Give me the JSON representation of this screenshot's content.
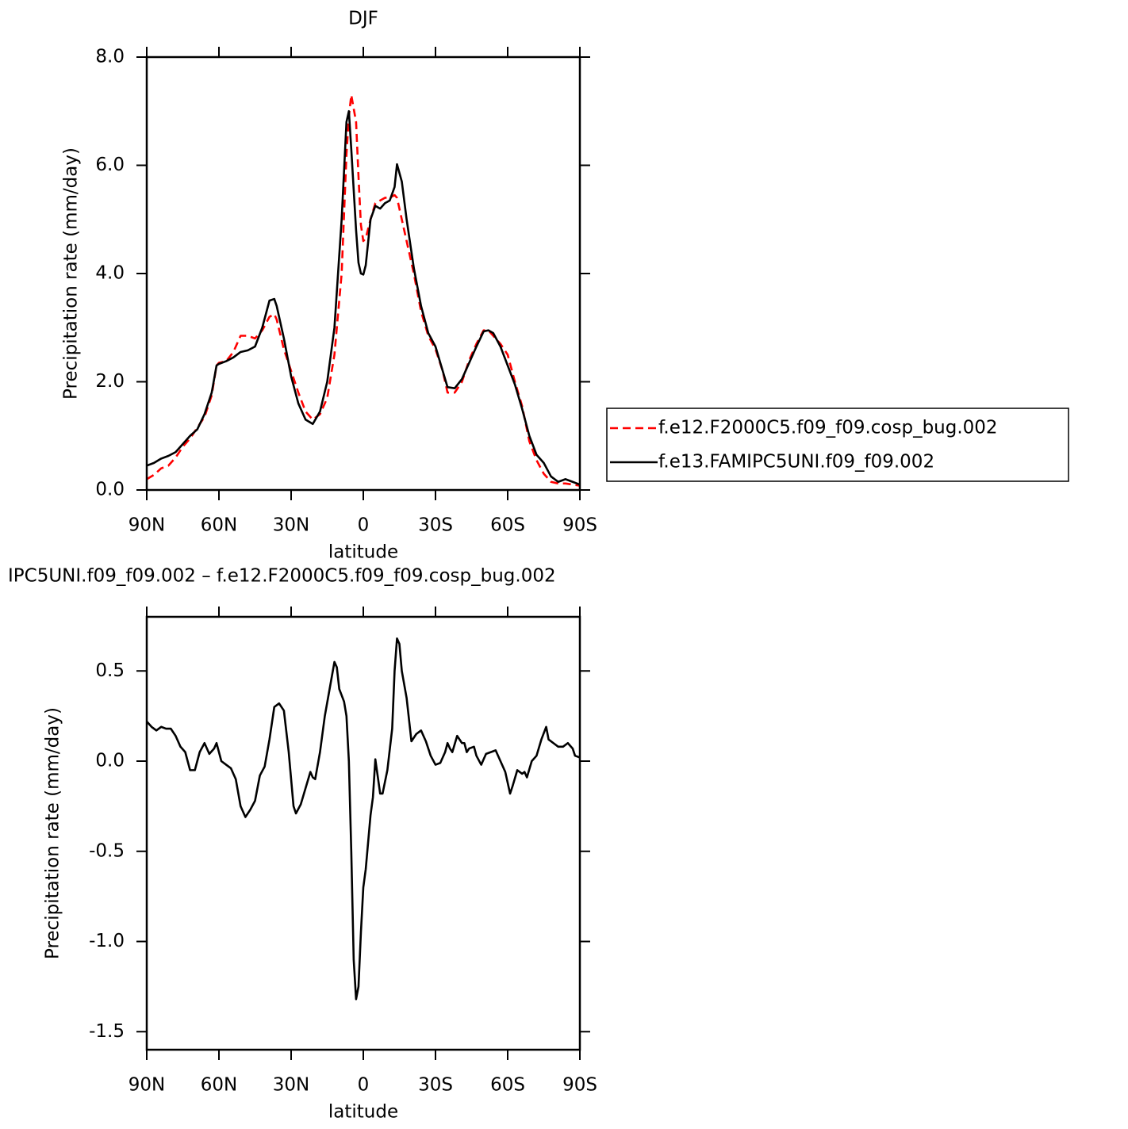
{
  "chart_data": [
    {
      "type": "line",
      "title": "DJF",
      "xlabel": "latitude",
      "ylabel": "Precipitation rate (mm/day)",
      "xlim": [
        90,
        -90
      ],
      "xticks": [
        {
          "value": 90,
          "label": "90N"
        },
        {
          "value": 60,
          "label": "60N"
        },
        {
          "value": 30,
          "label": "30N"
        },
        0,
        {
          "value": -30,
          "label": "30S"
        },
        {
          "value": -60,
          "label": "60S"
        },
        {
          "value": -90,
          "label": "90S"
        }
      ],
      "ylim": [
        0,
        8
      ],
      "yticks": [
        {
          "value": 0,
          "label": "0.0"
        },
        {
          "value": 2,
          "label": "2.0"
        },
        {
          "value": 4,
          "label": "4.0"
        },
        {
          "value": 6,
          "label": "6.0"
        },
        {
          "value": 8,
          "label": "8.0"
        }
      ],
      "legend": "right",
      "x": [
        90,
        87,
        84,
        81,
        78,
        75,
        72,
        69,
        66,
        63,
        61,
        60,
        57,
        54,
        51,
        48,
        45,
        42,
        39,
        37,
        36,
        33,
        30,
        27,
        24,
        21,
        18,
        15,
        12,
        9,
        7,
        6,
        5,
        3,
        2,
        1,
        0,
        -1,
        -3,
        -5,
        -7,
        -9,
        -11,
        -13,
        -14,
        -16,
        -18,
        -21,
        -24,
        -27,
        -30,
        -33,
        -35,
        -38,
        -41,
        -44,
        -47,
        -50,
        -52,
        -54,
        -57,
        -60,
        -63,
        -66,
        -69,
        -72,
        -75,
        -78,
        -81,
        -84,
        -87,
        -90
      ],
      "series": [
        {
          "name": "f.e12.F2000C5.f09_f09.cosp_bug.002",
          "color": "#ff0000",
          "dashed": true,
          "values": [
            0.2,
            0.28,
            0.4,
            0.45,
            0.6,
            0.8,
            0.95,
            1.15,
            1.35,
            1.75,
            2.3,
            2.35,
            2.38,
            2.55,
            2.85,
            2.85,
            2.8,
            2.95,
            3.2,
            3.25,
            3.15,
            2.6,
            2.2,
            1.8,
            1.45,
            1.3,
            1.4,
            1.7,
            2.5,
            4.0,
            6.2,
            6.9,
            7.3,
            6.8,
            5.8,
            4.9,
            4.6,
            4.65,
            5.0,
            5.3,
            5.35,
            5.4,
            5.4,
            5.45,
            5.4,
            5.0,
            4.6,
            4.0,
            3.3,
            2.85,
            2.6,
            2.2,
            1.8,
            1.8,
            2.0,
            2.4,
            2.7,
            2.95,
            2.95,
            2.85,
            2.7,
            2.5,
            2.0,
            1.55,
            0.9,
            0.55,
            0.3,
            0.15,
            0.12,
            0.12,
            0.1,
            0.08
          ]
        },
        {
          "name": "f.e13.FAMIPC5UNI.f09_f09.002",
          "color": "#000000",
          "dashed": false,
          "values": [
            0.45,
            0.5,
            0.58,
            0.63,
            0.7,
            0.85,
            1.0,
            1.12,
            1.4,
            1.8,
            2.3,
            2.33,
            2.38,
            2.45,
            2.55,
            2.58,
            2.65,
            3.0,
            3.5,
            3.53,
            3.4,
            2.8,
            2.1,
            1.6,
            1.3,
            1.22,
            1.45,
            2.0,
            3.0,
            5.0,
            6.8,
            7.0,
            6.3,
            4.8,
            4.2,
            4.0,
            3.98,
            4.15,
            5.0,
            5.25,
            5.2,
            5.3,
            5.35,
            5.6,
            6.02,
            5.7,
            5.0,
            4.1,
            3.4,
            2.9,
            2.65,
            2.2,
            1.9,
            1.88,
            2.05,
            2.35,
            2.65,
            2.93,
            2.95,
            2.9,
            2.65,
            2.3,
            1.95,
            1.5,
            1.0,
            0.65,
            0.5,
            0.25,
            0.15,
            0.2,
            0.15,
            0.1
          ]
        }
      ]
    },
    {
      "type": "line",
      "title": "IPC5UNI.f09_f09.002 – f.e12.F2000C5.f09_f09.cosp_bug.002",
      "xlabel": "latitude",
      "ylabel": "Precipitation rate (mm/day)",
      "xlim": [
        90,
        -90
      ],
      "xticks": [
        {
          "value": 90,
          "label": "90N"
        },
        {
          "value": 60,
          "label": "60N"
        },
        {
          "value": 30,
          "label": "30N"
        },
        0,
        {
          "value": -30,
          "label": "30S"
        },
        {
          "value": -60,
          "label": "60S"
        },
        {
          "value": -90,
          "label": "90S"
        }
      ],
      "ylim": [
        -1.6,
        0.8
      ],
      "yticks": [
        0.5,
        {
          "value": 0,
          "label": "0.0"
        },
        -0.5,
        {
          "value": -1,
          "label": "-1.0"
        },
        -1.5
      ],
      "x": [
        90,
        88,
        86,
        84,
        82,
        80,
        78,
        76,
        74,
        72,
        70,
        68,
        66,
        64,
        62,
        61,
        59,
        57,
        55,
        53,
        51,
        49,
        47,
        45,
        43,
        41,
        39,
        37,
        35,
        33,
        31,
        29,
        28,
        26,
        24,
        22,
        21,
        20,
        18,
        16,
        14,
        12,
        11,
        10,
        8,
        7,
        6,
        5,
        4,
        3,
        2,
        1,
        0,
        -1,
        -3,
        -4,
        -5,
        -7,
        -8,
        -10,
        -12,
        -13,
        -14,
        -15,
        -16,
        -18,
        -20,
        -22,
        -24,
        -26,
        -28,
        -30,
        -32,
        -34,
        -35,
        -36,
        -37,
        -39,
        -41,
        -42,
        -43,
        -44,
        -46,
        -47,
        -49,
        -51,
        -53,
        -55,
        -57,
        -59,
        -61,
        -62,
        -64,
        -66,
        -67,
        -68,
        -70,
        -72,
        -74,
        -76,
        -77,
        -79,
        -81,
        -83,
        -85,
        -87,
        -88,
        -90
      ],
      "series": [
        {
          "color": "#000000",
          "dashed": false,
          "values": [
            0.22,
            0.19,
            0.17,
            0.19,
            0.18,
            0.18,
            0.14,
            0.08,
            0.05,
            -0.05,
            -0.05,
            0.05,
            0.1,
            0.04,
            0.07,
            0.1,
            0.0,
            -0.02,
            -0.04,
            -0.1,
            -0.25,
            -0.31,
            -0.27,
            -0.22,
            -0.08,
            -0.03,
            0.12,
            0.3,
            0.32,
            0.28,
            0.05,
            -0.25,
            -0.29,
            -0.24,
            -0.15,
            -0.06,
            -0.09,
            -0.1,
            0.05,
            0.25,
            0.4,
            0.55,
            0.52,
            0.4,
            0.33,
            0.25,
            0.0,
            -0.5,
            -1.1,
            -1.32,
            -1.25,
            -0.95,
            -0.7,
            -0.6,
            -0.3,
            -0.2,
            0.01,
            -0.18,
            -0.18,
            -0.05,
            0.18,
            0.5,
            0.68,
            0.65,
            0.5,
            0.35,
            0.11,
            0.15,
            0.17,
            0.11,
            0.03,
            -0.02,
            -0.01,
            0.05,
            0.1,
            0.07,
            0.05,
            0.14,
            0.1,
            0.1,
            0.05,
            0.07,
            0.08,
            0.03,
            -0.02,
            0.04,
            0.05,
            0.06,
            0.0,
            -0.06,
            -0.18,
            -0.14,
            -0.05,
            -0.07,
            -0.06,
            -0.09,
            0.0,
            0.03,
            0.12,
            0.19,
            0.12,
            0.1,
            0.08,
            0.08,
            0.1,
            0.07,
            0.03,
            0.02
          ]
        }
      ]
    }
  ]
}
